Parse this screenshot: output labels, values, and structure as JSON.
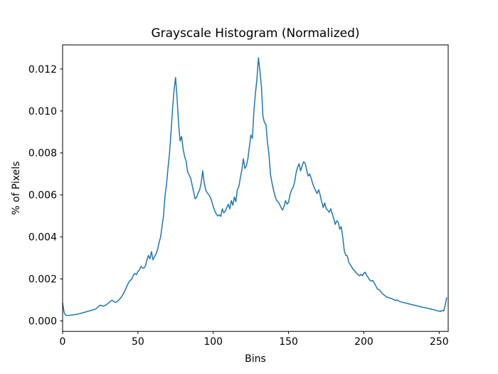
{
  "figure": {
    "title": "Grayscale Histogram (Normalized)",
    "xlabel": "Bins",
    "ylabel": "% of Pixels"
  },
  "chart_data": {
    "type": "line",
    "title": "Grayscale Histogram (Normalized)",
    "xlabel": "Bins",
    "ylabel": "% of Pixels",
    "legend": null,
    "grid": false,
    "line_color": "#1f77b4",
    "line_width": 1.5,
    "spine_color": "#000000",
    "background": "#ffffff",
    "xlim": [
      0,
      256
    ],
    "ylim": [
      -0.0005,
      0.01315
    ],
    "xticks": {
      "values": [
        0,
        50,
        100,
        150,
        200,
        250
      ],
      "labels": [
        "0",
        "50",
        "100",
        "150",
        "200",
        "250"
      ]
    },
    "yticks": {
      "values": [
        0.0,
        0.002,
        0.004,
        0.006,
        0.008,
        0.01,
        0.012
      ],
      "labels": [
        "0.000",
        "0.002",
        "0.004",
        "0.006",
        "0.008",
        "0.010",
        "0.012"
      ]
    },
    "x_start": 0,
    "x_step": 1,
    "values": [
      0.00085,
      0.0004,
      0.00028,
      0.00026,
      0.00026,
      0.00027,
      0.00028,
      0.00029,
      0.0003,
      0.00031,
      0.00032,
      0.00034,
      0.00036,
      0.00038,
      0.0004,
      0.00042,
      0.00044,
      0.00046,
      0.00048,
      0.0005,
      0.00052,
      0.00054,
      0.00057,
      0.00063,
      0.0007,
      0.00075,
      0.00072,
      0.0007,
      0.00073,
      0.00077,
      0.00082,
      0.00089,
      0.00095,
      0.00098,
      0.00092,
      0.00088,
      0.00091,
      0.00097,
      0.00105,
      0.00114,
      0.00125,
      0.00139,
      0.00155,
      0.0017,
      0.00185,
      0.00193,
      0.002,
      0.00218,
      0.00226,
      0.0022,
      0.00236,
      0.00242,
      0.0026,
      0.00253,
      0.00251,
      0.00262,
      0.0029,
      0.00312,
      0.00296,
      0.0033,
      0.00291,
      0.00306,
      0.00318,
      0.00338,
      0.00372,
      0.00398,
      0.00448,
      0.005,
      0.00598,
      0.0065,
      0.0073,
      0.008,
      0.009,
      0.0101,
      0.011,
      0.0116,
      0.0106,
      0.0094,
      0.00857,
      0.00879,
      0.0082,
      0.00783,
      0.0076,
      0.0071,
      0.00695,
      0.00681,
      0.00647,
      0.00613,
      0.00582,
      0.0059,
      0.0061,
      0.00624,
      0.00658,
      0.00715,
      0.00658,
      0.00624,
      0.0061,
      0.00602,
      0.0059,
      0.0057,
      0.00545,
      0.00525,
      0.0051,
      0.005,
      0.00505,
      0.00498,
      0.00534,
      0.00515,
      0.00523,
      0.0054,
      0.00556,
      0.00534,
      0.00573,
      0.00551,
      0.0059,
      0.00568,
      0.00624,
      0.0064,
      0.00681,
      0.0072,
      0.00772,
      0.00726,
      0.00738,
      0.00772,
      0.0083,
      0.00885,
      0.0087,
      0.00998,
      0.01083,
      0.01151,
      0.01253,
      0.0119,
      0.01117,
      0.00975,
      0.00945,
      0.00935,
      0.00851,
      0.00794,
      0.00698,
      0.00658,
      0.00624,
      0.00595,
      0.00575,
      0.00568,
      0.00556,
      0.0054,
      0.00528,
      0.00545,
      0.00573,
      0.00556,
      0.00565,
      0.00602,
      0.00624,
      0.00636,
      0.0066,
      0.00704,
      0.00732,
      0.00749,
      0.00715,
      0.00738,
      0.00758,
      0.00752,
      0.0072,
      0.0069,
      0.007,
      0.00681,
      0.00655,
      0.00636,
      0.0062,
      0.00607,
      0.00625,
      0.006,
      0.00568,
      0.0054,
      0.00562,
      0.00535,
      0.00528,
      0.00517,
      0.00534,
      0.00511,
      0.00488,
      0.0046,
      0.00477,
      0.0047,
      0.00437,
      0.00449,
      0.00398,
      0.00335,
      0.00313,
      0.0031,
      0.00279,
      0.00268,
      0.00256,
      0.00245,
      0.00238,
      0.00228,
      0.00222,
      0.00215,
      0.00222,
      0.00215,
      0.00228,
      0.00232,
      0.00215,
      0.00205,
      0.00194,
      0.0019,
      0.00192,
      0.0018,
      0.00166,
      0.00152,
      0.00149,
      0.00142,
      0.00132,
      0.00126,
      0.0012,
      0.00115,
      0.00112,
      0.00109,
      0.00107,
      0.00104,
      0.00101,
      0.00098,
      0.001,
      0.00095,
      0.00092,
      0.0009,
      0.00088,
      0.00086,
      0.00085,
      0.00083,
      0.00081,
      0.00079,
      0.00077,
      0.00076,
      0.00074,
      0.00072,
      0.0007,
      0.00069,
      0.00067,
      0.00065,
      0.00064,
      0.00062,
      0.00061,
      0.00059,
      0.00057,
      0.00056,
      0.00054,
      0.00052,
      0.0005,
      0.00048,
      0.00046,
      0.00045,
      0.0005,
      0.00047,
      0.00075,
      0.0011
    ]
  }
}
